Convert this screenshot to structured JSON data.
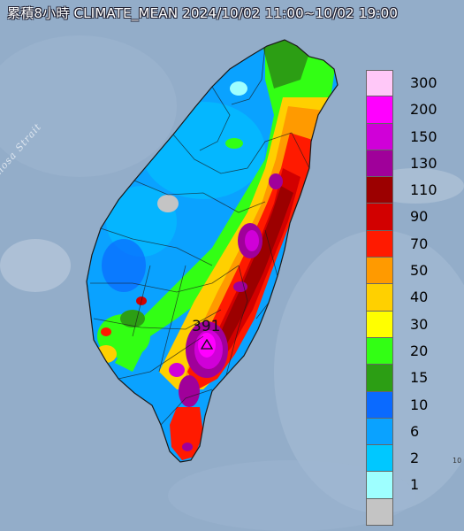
{
  "title": "累積8小時 CLIMATE_MEAN 2024/10/02 11:00~10/02 19:00",
  "strait_label": "Formosa Strait",
  "max_value_label": "391",
  "legend": {
    "unit": "",
    "levels": [
      {
        "label": "300",
        "color": "#ffc8f8"
      },
      {
        "label": "200",
        "color": "#ff00ff"
      },
      {
        "label": "150",
        "color": "#d000d8"
      },
      {
        "label": "130",
        "color": "#a0009a"
      },
      {
        "label": "110",
        "color": "#9c0000"
      },
      {
        "label": "90",
        "color": "#d20000"
      },
      {
        "label": "70",
        "color": "#ff1a00"
      },
      {
        "label": "50",
        "color": "#ff9a00"
      },
      {
        "label": "40",
        "color": "#ffd000"
      },
      {
        "label": "30",
        "color": "#ffff00"
      },
      {
        "label": "20",
        "color": "#32ff14"
      },
      {
        "label": "15",
        "color": "#2c9e14"
      },
      {
        "label": "10",
        "color": "#0a6aff"
      },
      {
        "label": "6",
        "color": "#0aa2ff"
      },
      {
        "label": "2",
        "color": "#00c8ff"
      },
      {
        "label": "1",
        "color": "#9effff"
      },
      {
        "label": "",
        "color": "#c4c4c4"
      }
    ]
  },
  "corner_glyph": "10"
}
